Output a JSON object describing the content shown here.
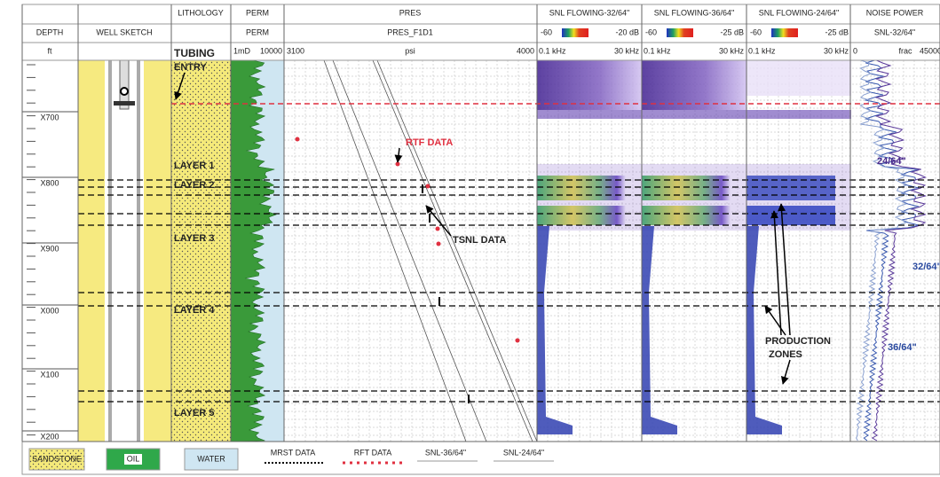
{
  "header": {
    "depth": {
      "title": "DEPTH",
      "unit": "ft"
    },
    "well_sketch": "WELL SKETCH",
    "lithology": "LITHOLOGY",
    "perm": {
      "title": "PERM",
      "curve": "PERM",
      "min": "1mD",
      "max": "10000"
    },
    "pres": {
      "title": "PRES",
      "curve": "PRES_F1D1",
      "min": "3100",
      "unit": "psi",
      "max": "4000"
    },
    "snl_tracks": [
      {
        "title": "SNL FLOWING-32/64\"",
        "db_min": "-60",
        "db_max": "-20 dB",
        "f_min": "0.1 kHz",
        "f_max": "30 kHz"
      },
      {
        "title": "SNL FLOWING-36/64\"",
        "db_min": "-60",
        "db_max": "-25 dB",
        "f_min": "0.1 kHz",
        "f_max": "30 kHz"
      },
      {
        "title": "SNL FLOWING-24/64\"",
        "db_min": "-60",
        "db_max": "-25 dB",
        "f_min": "0.1 kHz",
        "f_max": "30 kHz"
      }
    ],
    "noise": {
      "title": "NOISE POWER",
      "curve": "SNL-32/64\"",
      "min": "0",
      "unit": "frac",
      "max": "45000"
    }
  },
  "depth_labels": [
    "X700",
    "X800",
    "X900",
    "X000",
    "X100",
    "X200"
  ],
  "annotations": {
    "tubing": "TUBING",
    "entry": "ENTRY",
    "layers": [
      "LAYER 1",
      "LAYER 2",
      "LAYER 3",
      "LAYER 4",
      "LAYER 5"
    ],
    "rtf": "RTF DATA",
    "tsnl": "TSNL DATA",
    "production": [
      "PRODUCTION",
      "ZONES"
    ],
    "noise_labels": [
      "24/64\"",
      "32/64\"",
      "36/64\""
    ]
  },
  "legend": {
    "sandstone": "SANDSTONE",
    "oil": "OIL",
    "water": "WATER",
    "mrst": "MRST DATA",
    "rft": "RFT DATA",
    "snl36": "SNL-36/64\"",
    "snl24": "SNL-24/64\""
  }
}
